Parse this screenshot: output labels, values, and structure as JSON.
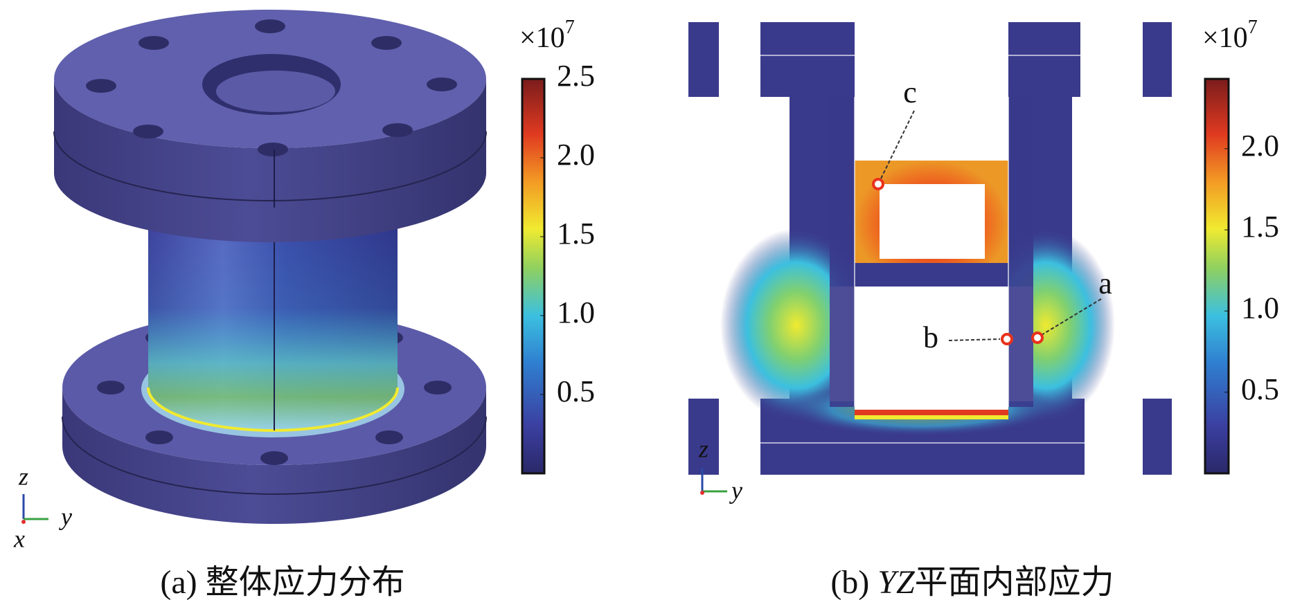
{
  "panels": [
    {
      "caption": "(a) 整体应力分布",
      "axes": {
        "z": "z",
        "y": "y",
        "x": "x"
      },
      "colorbar": {
        "multiplier": "×10",
        "exponent": "7",
        "range": [
          0,
          2.5
        ],
        "ticks": [
          {
            "value": 0.5,
            "label": "0.5"
          },
          {
            "value": 1,
            "label": "1.0"
          },
          {
            "value": 1.5,
            "label": "1.5"
          },
          {
            "value": 2,
            "label": "2.0"
          },
          {
            "value": 2.5,
            "label": "2.5"
          }
        ]
      }
    },
    {
      "caption_prefix": "(b) ",
      "caption_italic": "YZ",
      "caption_rest": "平面内部应力",
      "axes": {
        "z": "z",
        "y": "y"
      },
      "points": {
        "a": "a",
        "b": "b",
        "c": "c"
      },
      "colorbar": {
        "multiplier": "×10",
        "exponent": "7",
        "range": [
          0,
          2.43
        ],
        "ticks": [
          {
            "value": 0.5,
            "label": "0.5"
          },
          {
            "value": 1,
            "label": "1.0"
          },
          {
            "value": 1.5,
            "label": "1.5"
          },
          {
            "value": 2,
            "label": "2.0"
          }
        ]
      }
    }
  ]
}
